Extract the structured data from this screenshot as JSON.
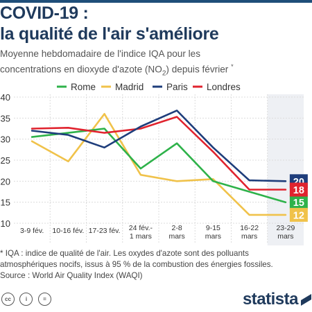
{
  "header": {
    "title_line1": "COVID-19 :",
    "title_line2": "la qualité de l'air s'améliore",
    "subtitle_line1": "Moyenne hebdomadaire de l'indice IQA pour les",
    "subtitle_line2_pre": "concentrations en dioxyde d'azote (NO",
    "subtitle_sub": "2",
    "subtitle_line2_post": ") depuis février",
    "subtitle_sup": "*"
  },
  "chart_data": {
    "type": "line",
    "categories": [
      [
        "3-9 fév."
      ],
      [
        "10-16 fév."
      ],
      [
        "17-23 fév."
      ],
      [
        "24 fév.-",
        "1 mars"
      ],
      [
        "2-8",
        "mars"
      ],
      [
        "9-15",
        "mars"
      ],
      [
        "16-22",
        "mars"
      ],
      [
        "23-29",
        "mars"
      ]
    ],
    "y_ticks": [
      "10",
      "15",
      "20",
      "25",
      "30",
      "35",
      "40"
    ],
    "ylim": [
      10,
      40
    ],
    "grid": true,
    "legend_position": "top-center",
    "series": [
      {
        "name": "Rome",
        "color": "#2eb24a",
        "values": [
          30.5,
          31.5,
          32.5,
          23,
          29,
          20,
          17.5,
          15
        ],
        "end_label": "15"
      },
      {
        "name": "Madrid",
        "color": "#f0c24a",
        "values": [
          29.5,
          24.7,
          36,
          21.5,
          20,
          20.5,
          12,
          12
        ],
        "end_label": "12"
      },
      {
        "name": "Paris",
        "color": "#1e3d7b",
        "values": [
          32,
          31,
          28,
          33,
          36.8,
          28,
          20.2,
          20
        ],
        "end_label": "20"
      },
      {
        "name": "Londres",
        "color": "#e0232e",
        "values": [
          32.5,
          32.7,
          31.5,
          32.5,
          35.3,
          27,
          18,
          18
        ],
        "end_label": "18"
      }
    ]
  },
  "footer": {
    "note_line1": "* IQA : indice de qualité de l'air. Les oxydes d'azote sont des polluants",
    "note_line2": "atmosphériques nocifs, issus à 95 % de la combustion des énergies fossiles.",
    "source": "Source : World Air Quality Index (WAQI)",
    "license_icons": [
      "creative-commons-icon",
      "attribution-icon",
      "no-derivatives-icon"
    ],
    "license_glyphs": [
      "cc",
      "i",
      "="
    ],
    "brand": "statista"
  }
}
